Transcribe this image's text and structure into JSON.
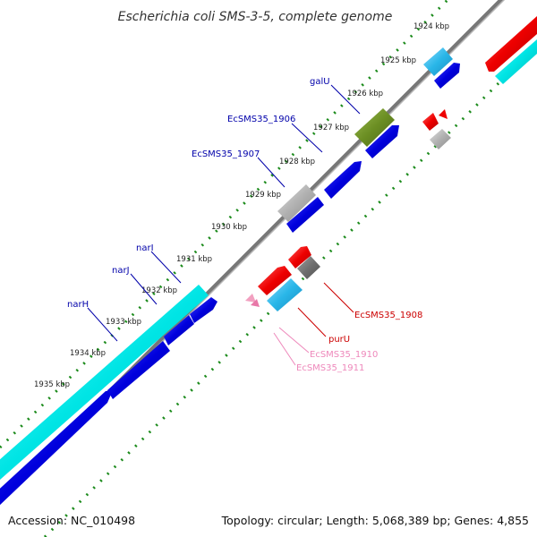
{
  "title": "Escherichia coli SMS-3-5, complete genome",
  "footer": {
    "accession": "Accession: NC_010498",
    "summary": "Topology: circular; Length: 5,068,389 bp; Genes: 4,855"
  },
  "ticks": [
    "1924 kbp",
    "1925 kbp",
    "1926 kbp",
    "1927 kbp",
    "1928 kbp",
    "1929 kbp",
    "1930 kbp",
    "1931 kbp",
    "1932 kbp",
    "1933 kbp",
    "1934 kbp",
    "1935 kbp"
  ],
  "genes": {
    "galU": "galU",
    "EcSMS35_1906": "EcSMS35_1906",
    "EcSMS35_1907": "EcSMS35_1907",
    "narI": "narI",
    "narJ": "narJ",
    "narH": "narH",
    "EcSMS35_1908": "EcSMS35_1908",
    "purU": "purU",
    "EcSMS35_1910": "EcSMS35_1910",
    "EcSMS35_1911": "EcSMS35_1911"
  },
  "colors": {
    "backbone": "#888888",
    "forward_cds": "#0000dd",
    "reverse_cds": "#ee0000",
    "cyan_feature": "#00e5e5",
    "light_blue_feature": "#29b6e8",
    "olive_feature": "#6b8e23",
    "gray_feature": "#b0b0b0",
    "dark_gray_feature": "#707070",
    "pink_feature": "#f2a0c0",
    "tick_marks": "#1a8a1a",
    "label_blue": "#0000aa",
    "label_red": "#cc0000",
    "label_pink": "#ee88bb"
  }
}
